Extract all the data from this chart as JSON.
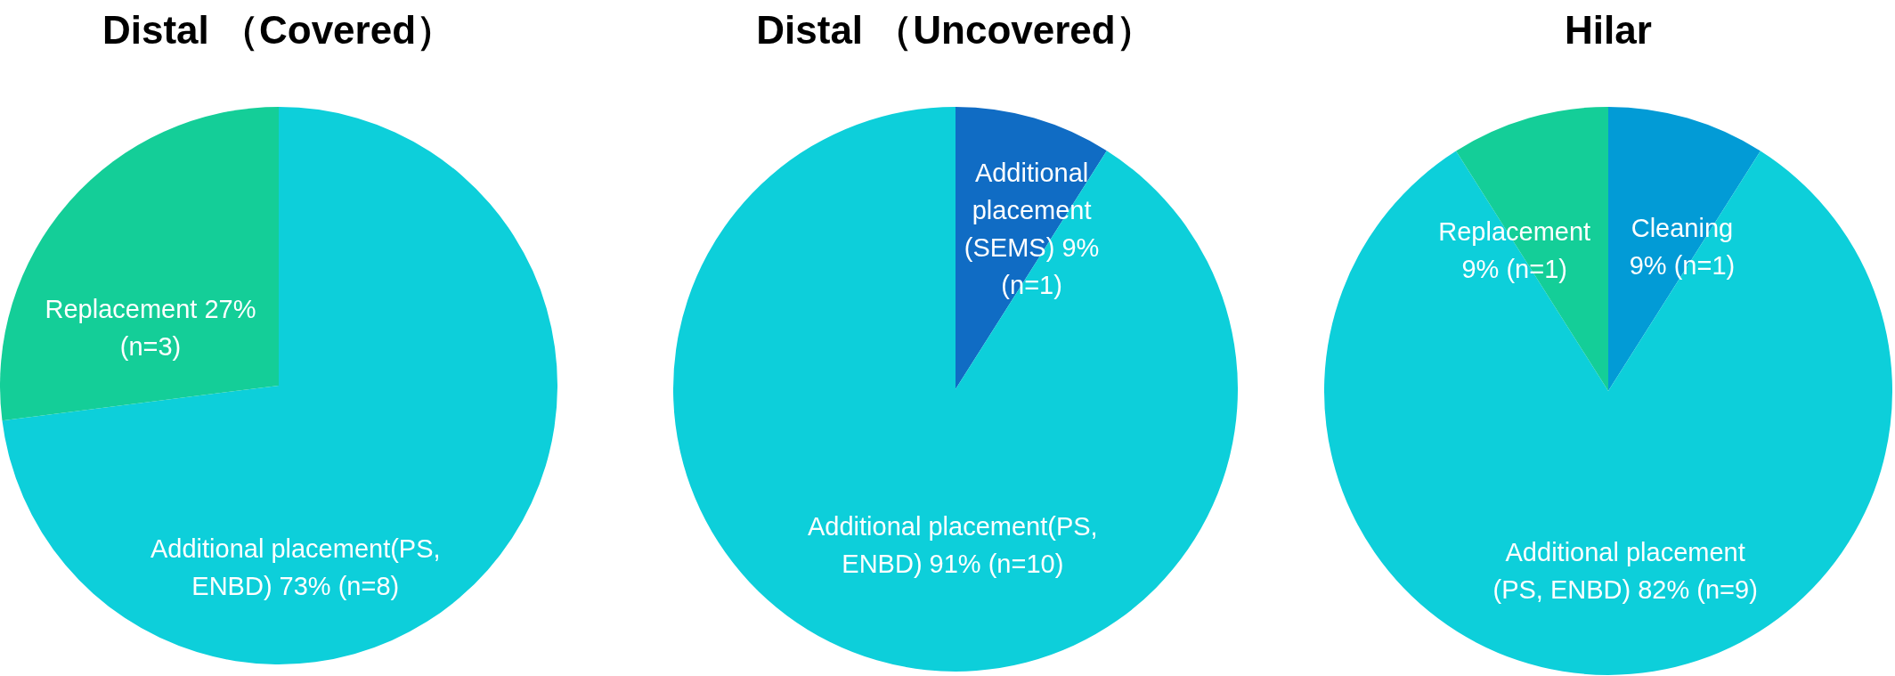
{
  "chart_data": [
    {
      "type": "pie",
      "title": "Distal （Covered）",
      "categories": [
        "Additional placement(PS, ENBD)",
        "Replacement"
      ],
      "values": [
        73,
        27
      ],
      "colors": [
        "#0dcfda",
        "#14ce98"
      ],
      "value_labels": [
        "73% (n=8)",
        "27% (n=3)"
      ]
    },
    {
      "type": "pie",
      "title": "Distal （Uncovered）",
      "categories": [
        "Additional placement (SEMS)",
        "Additional placement(PS, ENBD)"
      ],
      "values": [
        9,
        91
      ],
      "colors": [
        "#106cc4",
        "#0dcfda"
      ],
      "value_labels": [
        "9% (n=1)",
        "91% (n=10)"
      ]
    },
    {
      "type": "pie",
      "title": "Hilar",
      "categories": [
        "Cleaning",
        "Additional placement (PS, ENBD)",
        "Replacement"
      ],
      "values": [
        9,
        82,
        9
      ],
      "colors": [
        "#029bd6",
        "#0dcfda",
        "#14ce98"
      ],
      "value_labels": [
        "9% (n=1)",
        "82% (n=9)",
        "9% (n=1)"
      ]
    }
  ]
}
